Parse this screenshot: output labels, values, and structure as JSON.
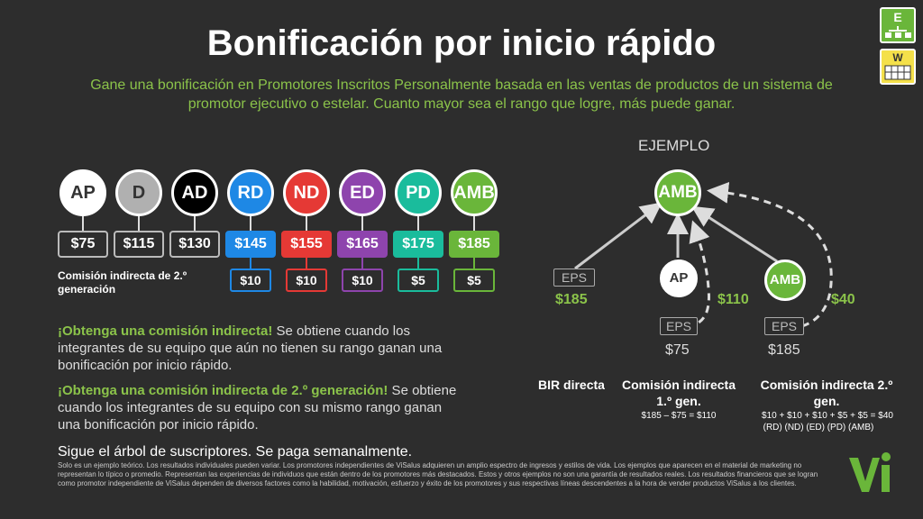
{
  "title": "Bonificación por inicio rápido",
  "subtitle": "Gane una bonificación en Promotores Inscritos Personalmente basada en las ventas de productos de un sistema de promotor ejecutivo o estelar. Cuanto mayor sea el rango que logre, más puede ganar.",
  "corner_icons": [
    {
      "name": "e-org-chart-icon",
      "letter": "E",
      "color": "#6ab63a"
    },
    {
      "name": "w-calendar-icon",
      "letter": "W",
      "color": "#f4e04a"
    }
  ],
  "ranks": [
    {
      "code": "AP",
      "amount": "$75",
      "gen2": "",
      "color": "#ffffff",
      "text": "#333333",
      "border": "#999999"
    },
    {
      "code": "D",
      "amount": "$115",
      "gen2": "",
      "color": "#b0b0b0",
      "text": "#333333",
      "border": "#999999"
    },
    {
      "code": "AD",
      "amount": "$130",
      "gen2": "",
      "color": "#000000",
      "text": "#ffffff",
      "border": "#999999"
    },
    {
      "code": "RD",
      "amount": "$145",
      "gen2": "$10",
      "color": "#1e88e5",
      "text": "#ffffff",
      "border": "#1e88e5"
    },
    {
      "code": "ND",
      "amount": "$155",
      "gen2": "$10",
      "color": "#e53935",
      "text": "#ffffff",
      "border": "#e53935"
    },
    {
      "code": "ED",
      "amount": "$165",
      "gen2": "$10",
      "color": "#8e44ad",
      "text": "#ffffff",
      "border": "#8e44ad"
    },
    {
      "code": "PD",
      "amount": "$175",
      "gen2": "$5",
      "color": "#1abc9c",
      "text": "#ffffff",
      "border": "#1abc9c"
    },
    {
      "code": "AMB",
      "amount": "$185",
      "gen2": "$5",
      "color": "#6ab63a",
      "text": "#ffffff",
      "border": "#6ab63a"
    }
  ],
  "gen2_label": "Comisión indirecta de 2.º generación",
  "example": {
    "label": "EJEMPLO",
    "top_node": "AMB",
    "left_eps": "EPS",
    "left_amount": "$185",
    "mid_node": "AP",
    "mid_amount": "$110",
    "mid_eps": "EPS",
    "mid_eps_value": "$75",
    "right_node": "AMB",
    "right_amount": "$40",
    "right_eps": "EPS",
    "right_eps_value": "$185"
  },
  "columns": {
    "col1_head": "BIR directa",
    "col2_head": "Comisión indirecta 1.º gen.",
    "col2_sub": "$185 – $75 = $110",
    "col3_head": "Comisión indirecta 2.º gen.",
    "col3_sub1": "$10 + $10 + $10 + $5 + $5 = $40",
    "col3_sub2": "(RD)  (ND)  (ED)  (PD) (AMB)"
  },
  "para1": {
    "highlight": "¡Obtenga una comisión indirecta!",
    "text": " Se obtiene cuando los integrantes de su equipo que aún no tienen su rango ganan una bonificación por inicio rápido."
  },
  "para2": {
    "highlight": "¡Obtenga una comisión indirecta de 2.º generación!",
    "text": " Se obtiene cuando los integrantes de su equipo con su mismo rango ganan una bonificación por inicio rápido."
  },
  "follow": "Sigue el árbol de suscriptores. Se paga semanalmente.",
  "fine_print": "Solo es un ejemplo teórico. Los resultados individuales pueden variar.  Los promotores independientes de ViSalus adquieren un amplio espectro de ingresos y estilos de vida. Los ejemplos que aparecen en el material de marketing no representan lo típico o promedio. Representan las experiencias de individuos que están dentro de los promotores más destacados.  Estos y otros ejemplos no son una garantía de resultados reales. Los resultados financieros que se logran como promotor independiente de ViSalus dependen de diversos factores como la habilidad, motivación, esfuerzo y éxito de los promotores y sus respectivas líneas descendentes a la hora de vender productos ViSalus a los clientes.",
  "logo_color": "#6ab63a"
}
